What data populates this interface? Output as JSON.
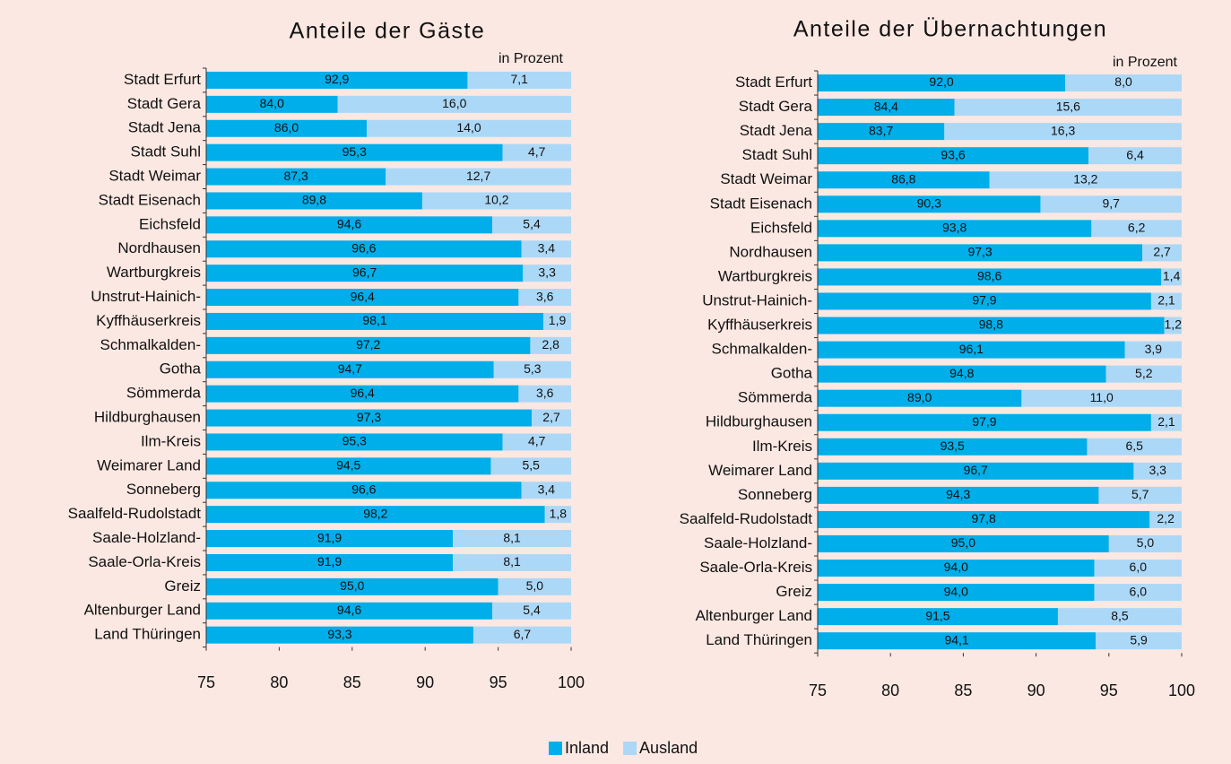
{
  "chart_data": [
    {
      "type": "bar",
      "title": "Anteile der Gäste",
      "unit": "in Prozent",
      "categories": [
        "Stadt Erfurt",
        "Stadt Gera",
        "Stadt Jena",
        "Stadt Suhl",
        "Stadt Weimar",
        "Stadt Eisenach",
        "Eichsfeld",
        "Nordhausen",
        "Wartburgkreis",
        "Unstrut-Hainich-",
        "Kyffhäuserkreis",
        "Schmalkalden-",
        "Gotha",
        "Sömmerda",
        "Hildburghausen",
        "Ilm-Kreis",
        "Weimarer Land",
        "Sonneberg",
        "Saalfeld-Rudolstadt",
        "Saale-Holzland-",
        "Saale-Orla-Kreis",
        "Greiz",
        "Altenburger Land",
        "Land Thüringen"
      ],
      "series": [
        {
          "name": "Inland",
          "color": "#00aeea",
          "values": [
            92.9,
            84.0,
            86.0,
            95.3,
            87.3,
            89.8,
            94.6,
            96.6,
            96.7,
            96.4,
            98.1,
            97.2,
            94.7,
            96.4,
            97.3,
            95.3,
            94.5,
            96.6,
            98.2,
            91.9,
            91.9,
            95.0,
            94.6,
            93.3
          ],
          "value_labels": [
            "92,9",
            "84,0",
            "86,0",
            "95,3",
            "87,3",
            "89,8",
            "94,6",
            "96,6",
            "96,7",
            "96,4",
            "98,1",
            "97,2",
            "94,7",
            "96,4",
            "97,3",
            "95,3",
            "94,5",
            "96,6",
            "98,2",
            "91,9",
            "91,9",
            "95,0",
            "94,6",
            "93,3"
          ]
        },
        {
          "name": "Ausland",
          "color": "#acd8f7",
          "values": [
            7.1,
            16.0,
            14.0,
            4.7,
            12.7,
            10.2,
            5.4,
            3.4,
            3.3,
            3.6,
            1.9,
            2.8,
            5.3,
            3.6,
            2.7,
            4.7,
            5.5,
            3.4,
            1.8,
            8.1,
            8.1,
            5.0,
            5.4,
            6.7
          ],
          "value_labels": [
            "7,1",
            "16,0",
            "14,0",
            "4,7",
            "12,7",
            "10,2",
            "5,4",
            "3,4",
            "3,3",
            "3,6",
            "1,9",
            "2,8",
            "5,3",
            "3,6",
            "2,7",
            "4,7",
            "5,5",
            "3,4",
            "1,8",
            "8,1",
            "8,1",
            "5,0",
            "5,4",
            "6,7"
          ]
        }
      ],
      "xlim": [
        75,
        100
      ],
      "xticks": [
        75,
        80,
        85,
        90,
        95,
        100
      ]
    },
    {
      "type": "bar",
      "title": "Anteile der Übernachtungen",
      "unit": "in Prozent",
      "categories": [
        "Stadt Erfurt",
        "Stadt Gera",
        "Stadt Jena",
        "Stadt Suhl",
        "Stadt Weimar",
        "Stadt Eisenach",
        "Eichsfeld",
        "Nordhausen",
        "Wartburgkreis",
        "Unstrut-Hainich-",
        "Kyffhäuserkreis",
        "Schmalkalden-",
        "Gotha",
        "Sömmerda",
        "Hildburghausen",
        "Ilm-Kreis",
        "Weimarer Land",
        "Sonneberg",
        "Saalfeld-Rudolstadt",
        "Saale-Holzland-",
        "Saale-Orla-Kreis",
        "Greiz",
        "Altenburger Land",
        "Land Thüringen"
      ],
      "series": [
        {
          "name": "Inland",
          "color": "#00aeea",
          "values": [
            92.0,
            84.4,
            83.7,
            93.6,
            86.8,
            90.3,
            93.8,
            97.3,
            98.6,
            97.9,
            98.8,
            96.1,
            94.8,
            89.0,
            97.9,
            93.5,
            96.7,
            94.3,
            97.8,
            95.0,
            94.0,
            94.0,
            91.5,
            94.1
          ],
          "value_labels": [
            "92,0",
            "84,4",
            "83,7",
            "93,6",
            "86,8",
            "90,3",
            "93,8",
            "97,3",
            "98,6",
            "97,9",
            "98,8",
            "96,1",
            "94,8",
            "89,0",
            "97,9",
            "93,5",
            "96,7",
            "94,3",
            "97,8",
            "95,0",
            "94,0",
            "94,0",
            "91,5",
            "94,1"
          ]
        },
        {
          "name": "Ausland",
          "color": "#acd8f7",
          "values": [
            8.0,
            15.6,
            16.3,
            6.4,
            13.2,
            9.7,
            6.2,
            2.7,
            1.4,
            2.1,
            1.2,
            3.9,
            5.2,
            11.0,
            2.1,
            6.5,
            3.3,
            5.7,
            2.2,
            5.0,
            6.0,
            6.0,
            8.5,
            5.9
          ],
          "value_labels": [
            "8,0",
            "15,6",
            "16,3",
            "6,4",
            "13,2",
            "9,7",
            "6,2",
            "2,7",
            "1,4",
            "2,1",
            "1,2",
            "3,9",
            "5,2",
            "11,0",
            "2,1",
            "6,5",
            "3,3",
            "5,7",
            "2,2",
            "5,0",
            "6,0",
            "6,0",
            "8,5",
            "5,9"
          ]
        }
      ],
      "xlim": [
        75,
        100
      ],
      "xticks": [
        75,
        80,
        85,
        90,
        95,
        100
      ]
    }
  ]
}
